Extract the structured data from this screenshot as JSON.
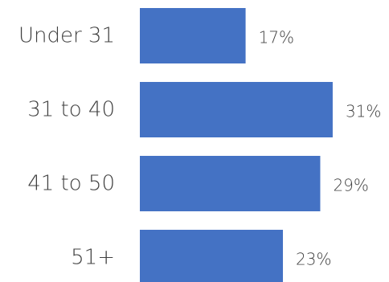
{
  "chart_data": {
    "type": "bar",
    "orientation": "horizontal",
    "categories": [
      "Under 31",
      "31 to 40",
      "41 to 50",
      "51+"
    ],
    "values": [
      17,
      31,
      29,
      23
    ],
    "value_labels": [
      "17%",
      "31%",
      "29%",
      "23%"
    ],
    "bar_color": "#4472C4",
    "xlim": [
      0,
      31
    ],
    "grid": false,
    "legend": "none"
  }
}
